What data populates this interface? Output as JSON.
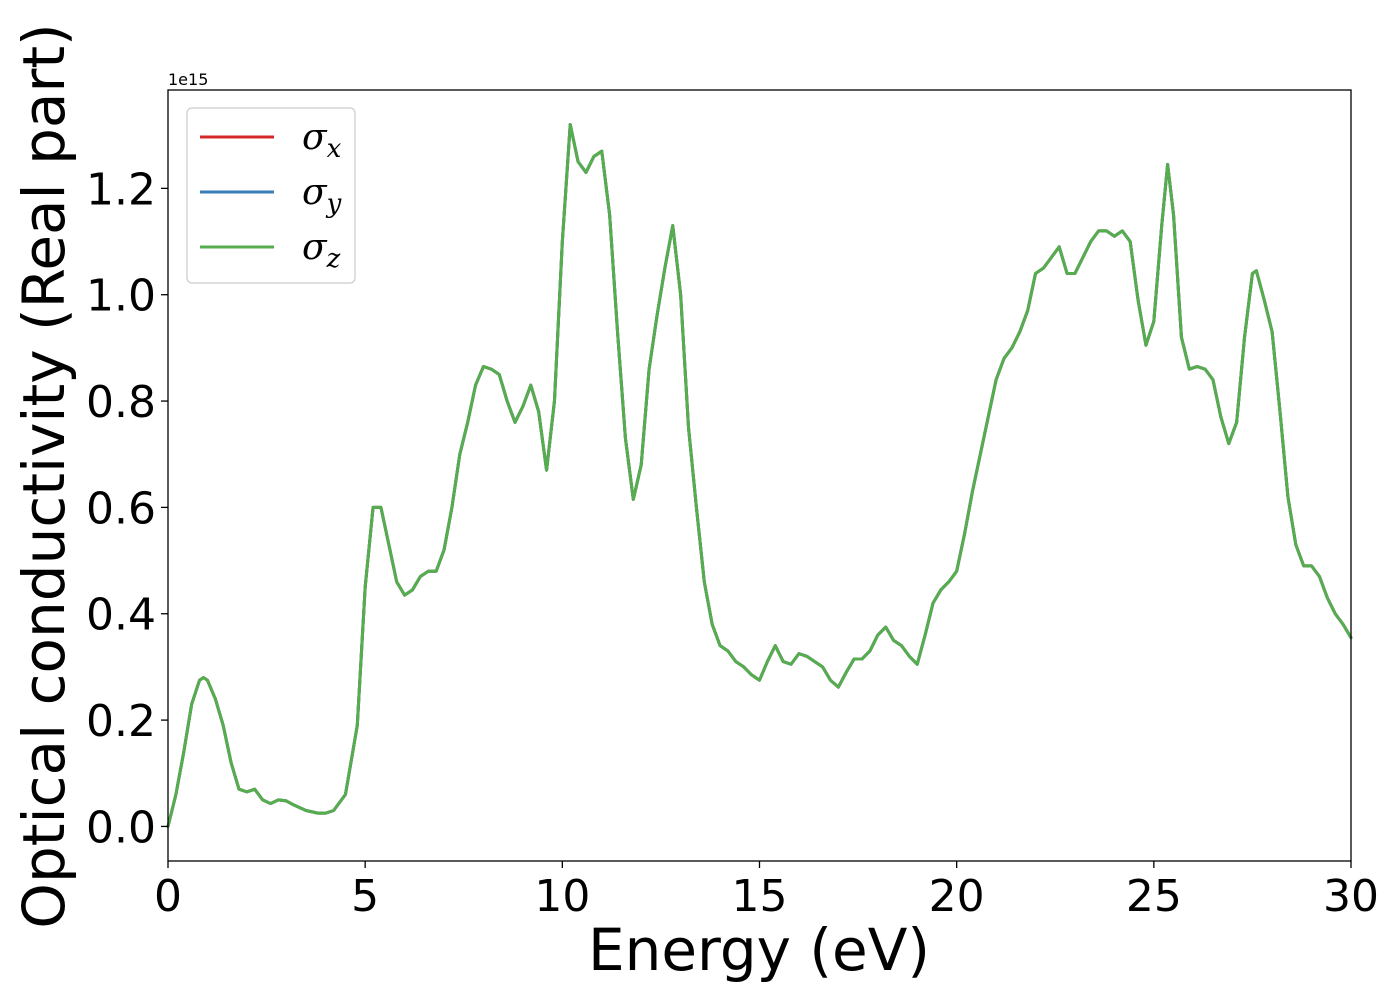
{
  "chart_data": {
    "type": "line",
    "title": "",
    "xlabel": "Energy (eV)",
    "ylabel": "Optical conductivity (Real part)",
    "y_offset_label": "1e15",
    "xlim": [
      0,
      30
    ],
    "ylim": [
      -0.065,
      1.385
    ],
    "x_ticks": [
      0,
      5,
      10,
      15,
      20,
      25,
      30
    ],
    "x_tick_labels": [
      "0",
      "5",
      "10",
      "15",
      "20",
      "25",
      "30"
    ],
    "y_ticks": [
      0.0,
      0.2,
      0.4,
      0.6,
      0.8,
      1.0,
      1.2
    ],
    "y_tick_labels": [
      "0.0",
      "0.2",
      "0.4",
      "0.6",
      "0.8",
      "1.0",
      "1.2"
    ],
    "grid": false,
    "legend_position": "top-left",
    "x": [
      0,
      0.2,
      0.4,
      0.6,
      0.8,
      0.9,
      1.0,
      1.2,
      1.4,
      1.6,
      1.8,
      2.0,
      2.2,
      2.4,
      2.6,
      2.8,
      3.0,
      3.2,
      3.5,
      3.8,
      4.0,
      4.2,
      4.5,
      4.8,
      5.0,
      5.2,
      5.4,
      5.6,
      5.8,
      6.0,
      6.2,
      6.4,
      6.6,
      6.8,
      7.0,
      7.2,
      7.4,
      7.6,
      7.8,
      8.0,
      8.2,
      8.4,
      8.6,
      8.8,
      9.0,
      9.2,
      9.4,
      9.6,
      9.8,
      10.0,
      10.2,
      10.4,
      10.6,
      10.8,
      11.0,
      11.2,
      11.4,
      11.6,
      11.8,
      12.0,
      12.2,
      12.4,
      12.6,
      12.8,
      13.0,
      13.2,
      13.4,
      13.6,
      13.8,
      14.0,
      14.2,
      14.4,
      14.6,
      14.8,
      15.0,
      15.2,
      15.4,
      15.6,
      15.8,
      16.0,
      16.2,
      16.4,
      16.6,
      16.8,
      17.0,
      17.2,
      17.4,
      17.6,
      17.8,
      18.0,
      18.2,
      18.4,
      18.6,
      18.8,
      19.0,
      19.2,
      19.4,
      19.6,
      19.8,
      20.0,
      20.2,
      20.4,
      20.6,
      20.8,
      21.0,
      21.2,
      21.4,
      21.6,
      21.8,
      22.0,
      22.2,
      22.4,
      22.6,
      22.8,
      23.0,
      23.2,
      23.4,
      23.6,
      23.8,
      24.0,
      24.2,
      24.4,
      24.6,
      24.8,
      25.0,
      25.2,
      25.35,
      25.5,
      25.7,
      25.9,
      26.1,
      26.3,
      26.5,
      26.7,
      26.9,
      27.1,
      27.3,
      27.5,
      27.6,
      27.8,
      28.0,
      28.2,
      28.4,
      28.6,
      28.8,
      29.0,
      29.2,
      29.4,
      29.6,
      29.8,
      30.0
    ],
    "series": [
      {
        "name": "σx",
        "color": "#d62728",
        "values": [
          0.0,
          0.06,
          0.14,
          0.23,
          0.275,
          0.28,
          0.275,
          0.24,
          0.19,
          0.12,
          0.07,
          0.065,
          0.07,
          0.05,
          0.043,
          0.05,
          0.048,
          0.04,
          0.03,
          0.025,
          0.025,
          0.03,
          0.06,
          0.19,
          0.45,
          0.6,
          0.6,
          0.53,
          0.46,
          0.435,
          0.445,
          0.47,
          0.48,
          0.48,
          0.52,
          0.6,
          0.7,
          0.76,
          0.83,
          0.865,
          0.86,
          0.85,
          0.8,
          0.76,
          0.79,
          0.83,
          0.78,
          0.67,
          0.8,
          1.1,
          1.32,
          1.25,
          1.23,
          1.26,
          1.27,
          1.15,
          0.93,
          0.73,
          0.615,
          0.68,
          0.86,
          0.96,
          1.05,
          1.13,
          1.0,
          0.75,
          0.6,
          0.46,
          0.38,
          0.34,
          0.33,
          0.31,
          0.3,
          0.285,
          0.275,
          0.31,
          0.34,
          0.31,
          0.305,
          0.325,
          0.32,
          0.31,
          0.3,
          0.275,
          0.262,
          0.29,
          0.315,
          0.315,
          0.33,
          0.36,
          0.375,
          0.35,
          0.34,
          0.32,
          0.305,
          0.36,
          0.42,
          0.445,
          0.46,
          0.48,
          0.55,
          0.63,
          0.7,
          0.77,
          0.84,
          0.88,
          0.9,
          0.93,
          0.97,
          1.04,
          1.05,
          1.07,
          1.09,
          1.04,
          1.04,
          1.07,
          1.1,
          1.12,
          1.12,
          1.11,
          1.12,
          1.1,
          0.99,
          0.905,
          0.95,
          1.13,
          1.245,
          1.15,
          0.92,
          0.86,
          0.865,
          0.86,
          0.84,
          0.77,
          0.72,
          0.76,
          0.92,
          1.04,
          1.045,
          0.99,
          0.93,
          0.78,
          0.62,
          0.53,
          0.49,
          0.49,
          0.47,
          0.43,
          0.4,
          0.38,
          0.355
        ]
      },
      {
        "name": "σy",
        "color": "#3a7eb8",
        "values": [
          0.0,
          0.06,
          0.14,
          0.23,
          0.275,
          0.28,
          0.275,
          0.24,
          0.19,
          0.12,
          0.07,
          0.065,
          0.07,
          0.05,
          0.043,
          0.05,
          0.048,
          0.04,
          0.03,
          0.025,
          0.025,
          0.03,
          0.06,
          0.19,
          0.45,
          0.6,
          0.6,
          0.53,
          0.46,
          0.435,
          0.445,
          0.47,
          0.48,
          0.48,
          0.52,
          0.6,
          0.7,
          0.76,
          0.83,
          0.865,
          0.86,
          0.85,
          0.8,
          0.76,
          0.79,
          0.83,
          0.78,
          0.67,
          0.8,
          1.1,
          1.32,
          1.25,
          1.23,
          1.26,
          1.27,
          1.15,
          0.93,
          0.73,
          0.615,
          0.68,
          0.86,
          0.96,
          1.05,
          1.13,
          1.0,
          0.75,
          0.6,
          0.46,
          0.38,
          0.34,
          0.33,
          0.31,
          0.3,
          0.285,
          0.275,
          0.31,
          0.34,
          0.31,
          0.305,
          0.325,
          0.32,
          0.31,
          0.3,
          0.275,
          0.262,
          0.29,
          0.315,
          0.315,
          0.33,
          0.36,
          0.375,
          0.35,
          0.34,
          0.32,
          0.305,
          0.36,
          0.42,
          0.445,
          0.46,
          0.48,
          0.55,
          0.63,
          0.7,
          0.77,
          0.84,
          0.88,
          0.9,
          0.93,
          0.97,
          1.04,
          1.05,
          1.07,
          1.09,
          1.04,
          1.04,
          1.07,
          1.1,
          1.12,
          1.12,
          1.11,
          1.12,
          1.1,
          0.99,
          0.905,
          0.95,
          1.13,
          1.245,
          1.15,
          0.92,
          0.86,
          0.865,
          0.86,
          0.84,
          0.77,
          0.72,
          0.76,
          0.92,
          1.04,
          1.045,
          0.99,
          0.93,
          0.78,
          0.62,
          0.53,
          0.49,
          0.49,
          0.47,
          0.43,
          0.4,
          0.38,
          0.355
        ]
      },
      {
        "name": "σz",
        "color": "#55ad4e",
        "values": [
          0.0,
          0.06,
          0.14,
          0.23,
          0.275,
          0.28,
          0.275,
          0.24,
          0.19,
          0.12,
          0.07,
          0.065,
          0.07,
          0.05,
          0.043,
          0.05,
          0.048,
          0.04,
          0.03,
          0.025,
          0.025,
          0.03,
          0.06,
          0.19,
          0.45,
          0.6,
          0.6,
          0.53,
          0.46,
          0.435,
          0.445,
          0.47,
          0.48,
          0.48,
          0.52,
          0.6,
          0.7,
          0.76,
          0.83,
          0.865,
          0.86,
          0.85,
          0.8,
          0.76,
          0.79,
          0.83,
          0.78,
          0.67,
          0.8,
          1.1,
          1.32,
          1.25,
          1.23,
          1.26,
          1.27,
          1.15,
          0.93,
          0.73,
          0.615,
          0.68,
          0.86,
          0.96,
          1.05,
          1.13,
          1.0,
          0.75,
          0.6,
          0.46,
          0.38,
          0.34,
          0.33,
          0.31,
          0.3,
          0.285,
          0.275,
          0.31,
          0.34,
          0.31,
          0.305,
          0.325,
          0.32,
          0.31,
          0.3,
          0.275,
          0.262,
          0.29,
          0.315,
          0.315,
          0.33,
          0.36,
          0.375,
          0.35,
          0.34,
          0.32,
          0.305,
          0.36,
          0.42,
          0.445,
          0.46,
          0.48,
          0.55,
          0.63,
          0.7,
          0.77,
          0.84,
          0.88,
          0.9,
          0.93,
          0.97,
          1.04,
          1.05,
          1.07,
          1.09,
          1.04,
          1.04,
          1.07,
          1.1,
          1.12,
          1.12,
          1.11,
          1.12,
          1.1,
          0.99,
          0.905,
          0.95,
          1.13,
          1.245,
          1.15,
          0.92,
          0.86,
          0.865,
          0.86,
          0.84,
          0.77,
          0.72,
          0.76,
          0.92,
          1.04,
          1.045,
          0.99,
          0.93,
          0.78,
          0.62,
          0.53,
          0.49,
          0.49,
          0.47,
          0.43,
          0.4,
          0.38,
          0.355
        ]
      }
    ],
    "legend": [
      {
        "symbol": "σ",
        "sub": "x",
        "color": "#d62728"
      },
      {
        "symbol": "σ",
        "sub": "y",
        "color": "#3a7eb8"
      },
      {
        "symbol": "σ",
        "sub": "z",
        "color": "#55ad4e"
      }
    ]
  }
}
